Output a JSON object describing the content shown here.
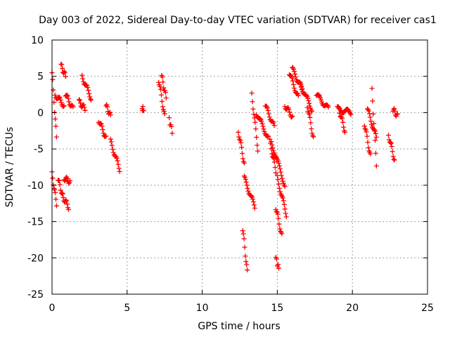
{
  "colors": {
    "series": "#ff0000",
    "grid": "#a0a0a0",
    "frame": "#000000"
  },
  "chart_data": {
    "type": "scatter",
    "marker": "plus",
    "title": "Day 003 of 2022, Sidereal Day-to-day VTEC variation (SDTVAR) for receiver cas1",
    "xlabel": "GPS time / hours",
    "ylabel": "SDTVAR / TECUs",
    "xlim": [
      0,
      25
    ],
    "ylim": [
      -25,
      10
    ],
    "xticks": [
      0,
      5,
      10,
      15,
      20,
      25
    ],
    "yticks": [
      10,
      5,
      0,
      -5,
      -10,
      -15,
      -20,
      -25
    ],
    "grid": true,
    "segments": [
      {
        "x0": 0.0,
        "x1": 0.3,
        "y0": 5.5,
        "y1": -3.5
      },
      {
        "x0": 0.0,
        "x1": 0.3,
        "y0": -8.5,
        "y1": -12.5
      },
      {
        "x0": 0.2,
        "x1": 0.8,
        "y0": 2.5,
        "y1": 1.0
      },
      {
        "x0": 0.4,
        "x1": 0.7,
        "y0": -9.0,
        "y1": -11.5
      },
      {
        "x0": 0.6,
        "x1": 0.9,
        "y0": 6.5,
        "y1": 5.0
      },
      {
        "x0": 0.7,
        "x1": 1.1,
        "y0": -11.5,
        "y1": -13.0
      },
      {
        "x0": 0.8,
        "x1": 1.2,
        "y0": -9.0,
        "y1": -9.5
      },
      {
        "x0": 0.9,
        "x1": 1.4,
        "y0": 2.5,
        "y1": 0.5
      },
      {
        "x0": 1.8,
        "x1": 2.2,
        "y0": 1.5,
        "y1": 0.5
      },
      {
        "x0": 2.0,
        "x1": 2.6,
        "y0": 5.0,
        "y1": 2.0
      },
      {
        "x0": 3.1,
        "x1": 3.6,
        "y0": -1.0,
        "y1": -3.5
      },
      {
        "x0": 3.6,
        "x1": 3.9,
        "y0": 1.0,
        "y1": -0.5
      },
      {
        "x0": 3.9,
        "x1": 4.5,
        "y0": -4.0,
        "y1": -7.8
      },
      {
        "x0": 6.0,
        "x1": 6.1,
        "y0": 0.6,
        "y1": 0.4
      },
      {
        "x0": 7.1,
        "x1": 7.5,
        "y0": 4.5,
        "y1": -0.5
      },
      {
        "x0": 7.3,
        "x1": 7.6,
        "y0": 5.0,
        "y1": 2.0
      },
      {
        "x0": 7.8,
        "x1": 8.0,
        "y0": -1.0,
        "y1": -2.5
      },
      {
        "x0": 12.4,
        "x1": 12.8,
        "y0": -2.5,
        "y1": -7.0
      },
      {
        "x0": 12.7,
        "x1": 13.0,
        "y0": -16.0,
        "y1": -22.0
      },
      {
        "x0": 12.8,
        "x1": 13.5,
        "y0": -9.0,
        "y1": -13.0
      },
      {
        "x0": 13.3,
        "x1": 13.7,
        "y0": 2.5,
        "y1": -5.0
      },
      {
        "x0": 13.6,
        "x1": 14.4,
        "y0": 0.0,
        "y1": -3.5
      },
      {
        "x0": 14.2,
        "x1": 14.8,
        "y0": 1.0,
        "y1": -2.0
      },
      {
        "x0": 14.5,
        "x1": 14.9,
        "y0": -4.0,
        "y1": -8.0
      },
      {
        "x0": 14.6,
        "x1": 15.5,
        "y0": -4.0,
        "y1": -10.0
      },
      {
        "x0": 14.9,
        "x1": 15.3,
        "y0": -13.0,
        "y1": -17.0
      },
      {
        "x0": 14.9,
        "x1": 15.1,
        "y0": -20.0,
        "y1": -21.5
      },
      {
        "x0": 15.0,
        "x1": 15.6,
        "y0": -9.0,
        "y1": -14.0
      },
      {
        "x0": 15.5,
        "x1": 16.0,
        "y0": 1.0,
        "y1": -0.5
      },
      {
        "x0": 15.8,
        "x1": 16.4,
        "y0": 5.5,
        "y1": 2.0
      },
      {
        "x0": 16.0,
        "x1": 16.7,
        "y0": 6.0,
        "y1": 3.0
      },
      {
        "x0": 16.5,
        "x1": 17.3,
        "y0": 4.0,
        "y1": 0.5
      },
      {
        "x0": 17.0,
        "x1": 17.4,
        "y0": 1.0,
        "y1": -3.5
      },
      {
        "x0": 17.6,
        "x1": 18.4,
        "y0": 2.5,
        "y1": 0.5
      },
      {
        "x0": 19.0,
        "x1": 19.9,
        "y0": 0.5,
        "y1": 0.0
      },
      {
        "x0": 19.1,
        "x1": 19.5,
        "y0": 0.5,
        "y1": -2.5
      },
      {
        "x0": 20.8,
        "x1": 21.2,
        "y0": -1.5,
        "y1": -6.0
      },
      {
        "x0": 21.0,
        "x1": 21.6,
        "y0": 0.5,
        "y1": -3.5
      },
      {
        "x0": 21.3,
        "x1": 21.6,
        "y0": 3.0,
        "y1": -7.0
      },
      {
        "x0": 22.4,
        "x1": 22.8,
        "y0": -3.0,
        "y1": -6.5
      },
      {
        "x0": 22.7,
        "x1": 23.0,
        "y0": 0.5,
        "y1": -0.5
      }
    ]
  }
}
